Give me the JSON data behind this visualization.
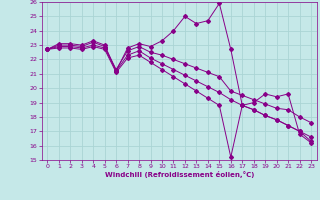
{
  "xlabel": "Windchill (Refroidissement éolien,°C)",
  "bg_color": "#c5e8e8",
  "grid_color": "#aad4d4",
  "line_color": "#880088",
  "xlim": [
    -0.5,
    23.5
  ],
  "ylim": [
    15,
    26
  ],
  "yticks": [
    15,
    16,
    17,
    18,
    19,
    20,
    21,
    22,
    23,
    24,
    25,
    26
  ],
  "xticks": [
    0,
    1,
    2,
    3,
    4,
    5,
    6,
    7,
    8,
    9,
    10,
    11,
    12,
    13,
    14,
    15,
    16,
    17,
    18,
    19,
    20,
    21,
    22,
    23
  ],
  "line1_x": [
    0,
    1,
    2,
    3,
    4,
    5,
    6,
    7,
    8,
    9,
    10,
    11,
    12,
    13,
    14,
    15,
    16,
    17,
    18,
    19,
    20,
    21,
    22,
    23
  ],
  "line1_y": [
    22.7,
    23.1,
    23.1,
    23.0,
    23.3,
    23.0,
    21.2,
    22.8,
    23.1,
    22.9,
    23.3,
    24.0,
    25.0,
    24.5,
    24.7,
    25.9,
    22.7,
    18.8,
    19.0,
    19.6,
    19.4,
    19.6,
    16.8,
    16.2
  ],
  "line2_x": [
    0,
    1,
    2,
    3,
    4,
    5,
    6,
    7,
    8,
    9,
    10,
    11,
    12,
    13,
    14,
    15,
    16,
    17,
    18,
    19,
    20,
    21,
    22,
    23
  ],
  "line2_y": [
    22.7,
    23.0,
    23.0,
    22.9,
    23.2,
    22.9,
    21.3,
    22.6,
    22.9,
    22.5,
    22.3,
    22.0,
    21.7,
    21.4,
    21.1,
    20.8,
    19.8,
    19.5,
    19.2,
    18.9,
    18.6,
    18.5,
    18.0,
    17.6
  ],
  "line3_x": [
    0,
    1,
    2,
    3,
    4,
    5,
    6,
    7,
    8,
    9,
    10,
    11,
    12,
    13,
    14,
    15,
    16,
    17,
    18,
    19,
    20,
    21,
    22,
    23
  ],
  "line3_y": [
    22.7,
    22.9,
    22.9,
    22.8,
    23.0,
    22.8,
    21.2,
    22.3,
    22.6,
    22.1,
    21.7,
    21.3,
    20.9,
    20.5,
    20.1,
    19.7,
    19.2,
    18.8,
    18.5,
    18.1,
    17.8,
    17.4,
    17.0,
    16.6
  ],
  "line4_x": [
    0,
    1,
    2,
    3,
    4,
    5,
    6,
    7,
    8,
    9,
    10,
    11,
    12,
    13,
    14,
    15,
    16,
    17,
    18,
    19,
    20,
    21,
    22,
    23
  ],
  "line4_y": [
    22.7,
    22.8,
    22.8,
    22.7,
    22.9,
    22.7,
    21.1,
    22.1,
    22.3,
    21.8,
    21.3,
    20.8,
    20.3,
    19.8,
    19.3,
    18.8,
    15.2,
    18.8,
    18.5,
    18.1,
    17.8,
    17.4,
    17.0,
    16.3
  ]
}
